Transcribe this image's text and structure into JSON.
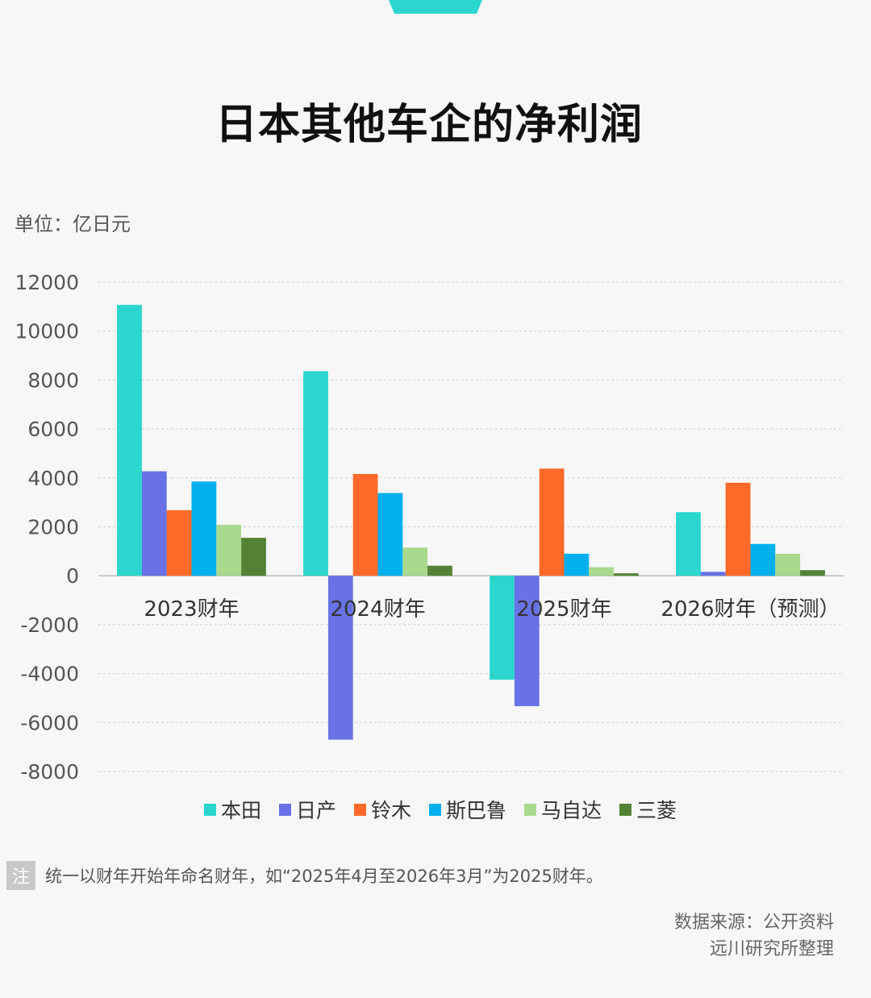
{
  "title": "日本其他车企的净利润",
  "unit_label": "单位：亿日元",
  "note_badge": "注",
  "note_text": "统一以财年开始年命名财年，如“2025年4月至2026年3月”为2025财年。",
  "source_line1": "数据来源：公开资料",
  "source_line2": "远川研究所整理",
  "chart_data": {
    "type": "bar",
    "title": "日本其他车企的净利润",
    "ylabel": "单位：亿日元",
    "categories": [
      "2023财年",
      "2024财年",
      "2025财年",
      "2026财年（预测）"
    ],
    "ylim": [
      -8000,
      12000
    ],
    "yticks": [
      12000,
      10000,
      8000,
      6000,
      4000,
      2000,
      0,
      -2000,
      -4000,
      -6000,
      -8000
    ],
    "grid": true,
    "legend_position": "bottom",
    "series": [
      {
        "name": "本田",
        "color": "#2ad6cd",
        "values": [
          11070,
          8360,
          -4250,
          2600
        ]
      },
      {
        "name": "日产",
        "color": "#6872e6",
        "values": [
          4270,
          -6700,
          -5330,
          160
        ]
      },
      {
        "name": "铃木",
        "color": "#ff6a28",
        "values": [
          2680,
          4160,
          4380,
          3800
        ]
      },
      {
        "name": "斯巴鲁",
        "color": "#00b0ed",
        "values": [
          3850,
          3380,
          900,
          1300
        ]
      },
      {
        "name": "马自达",
        "color": "#a9d98d",
        "values": [
          2080,
          1150,
          350,
          900
        ]
      },
      {
        "name": "三菱",
        "color": "#548235",
        "values": [
          1550,
          410,
          100,
          230
        ]
      }
    ]
  }
}
